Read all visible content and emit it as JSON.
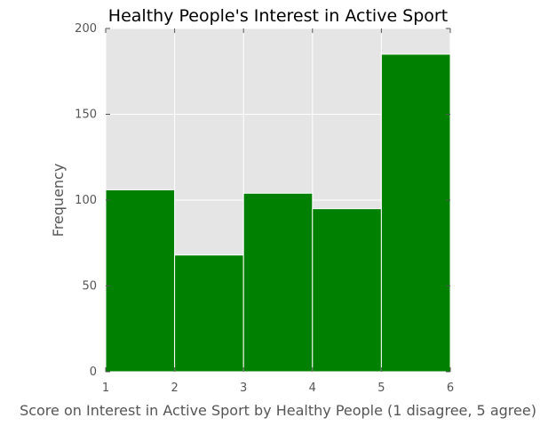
{
  "chart_data": {
    "type": "bar",
    "title": "Healthy People's Interest in Active Sport",
    "xlabel": "Score on Interest in Active Sport by Healthy People (1 disagree, 5 agree)",
    "ylabel": "Frequency",
    "bin_edges": [
      1,
      2,
      3,
      4,
      5,
      6
    ],
    "values": [
      106,
      68,
      104,
      95,
      185
    ],
    "xlim": [
      1,
      6
    ],
    "ylim": [
      0,
      200
    ],
    "xticks": [
      "1",
      "2",
      "3",
      "4",
      "5",
      "6"
    ],
    "yticks": [
      "0",
      "50",
      "100",
      "150",
      "200"
    ],
    "grid": true,
    "bar_color": "#008000",
    "background_color": "#e5e5e5",
    "grid_color": "#ffffff"
  }
}
